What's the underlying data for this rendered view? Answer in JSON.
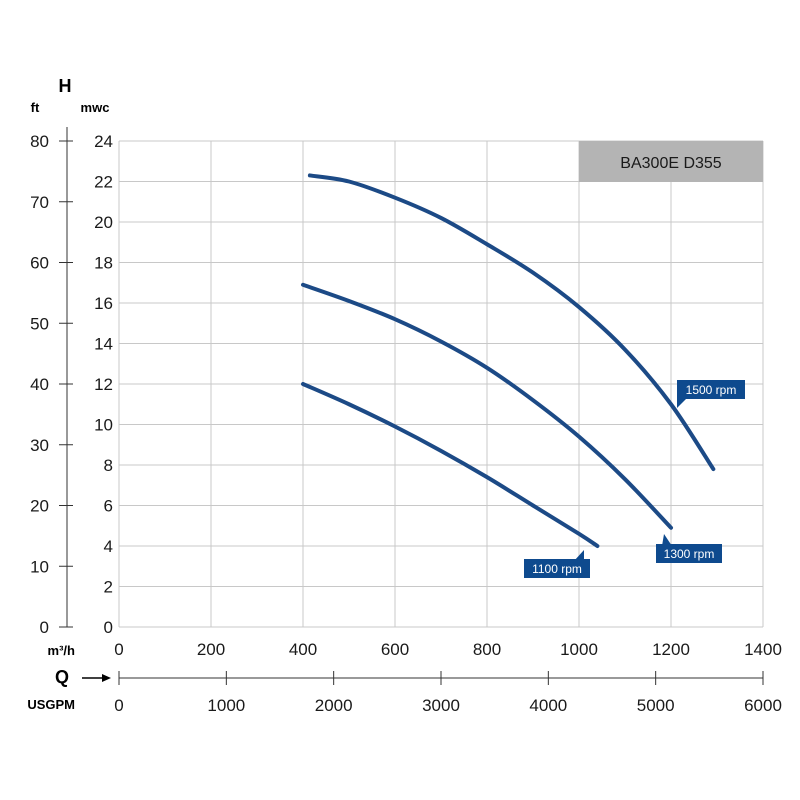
{
  "chart_data": {
    "type": "line",
    "title": "BA300E D355",
    "h_label": "H",
    "ft_label": "ft",
    "mwc_label": "mwc",
    "flow_label": "m³/h",
    "q_label": "Q",
    "usgpm_label": "USGPM",
    "x_ticks": [
      "0",
      "200",
      "400",
      "600",
      "800",
      "1000",
      "1200",
      "1400"
    ],
    "y_ticks": [
      "0",
      "2",
      "4",
      "6",
      "8",
      "10",
      "12",
      "14",
      "16",
      "18",
      "20",
      "22",
      "24"
    ],
    "ft_ticks": [
      "0",
      "10",
      "20",
      "30",
      "40",
      "50",
      "60",
      "70",
      "80"
    ],
    "usgpm_ticks": [
      "0",
      "1000",
      "2000",
      "3000",
      "4000",
      "5000",
      "6000"
    ],
    "xlim": [
      0,
      1400
    ],
    "ylim": [
      0,
      24
    ],
    "ftlim": [
      0,
      80
    ],
    "usgpmlim": [
      0,
      6000
    ],
    "grid": true,
    "colors": {
      "curve": "#1c4a86",
      "label_bg": "#0e4a8e",
      "title_bg": "#b4b4b4",
      "grid": "#c8c8c8"
    },
    "series": [
      {
        "name": "1500 rpm",
        "x": [
          415,
          500,
          600,
          700,
          800,
          900,
          1000,
          1100,
          1200,
          1292
        ],
        "y": [
          22.3,
          22.0,
          21.2,
          20.2,
          18.9,
          17.5,
          15.8,
          13.7,
          11.0,
          7.8
        ]
      },
      {
        "name": "1300 rpm",
        "x": [
          400,
          500,
          600,
          700,
          800,
          900,
          1000,
          1100,
          1200
        ],
        "y": [
          16.9,
          16.1,
          15.2,
          14.1,
          12.8,
          11.2,
          9.4,
          7.3,
          4.9
        ]
      },
      {
        "name": "1100 rpm",
        "x": [
          400,
          500,
          600,
          700,
          800,
          900,
          1000,
          1040
        ],
        "y": [
          12.0,
          11.0,
          9.9,
          8.7,
          7.4,
          6.0,
          4.6,
          4.0
        ]
      }
    ]
  }
}
